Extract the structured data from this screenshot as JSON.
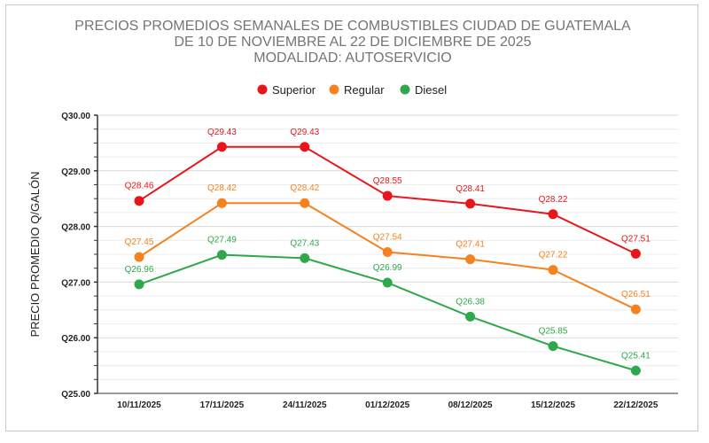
{
  "chart_data": {
    "type": "line",
    "title": [
      "PRECIOS PROMEDIOS SEMANALES DE COMBUSTIBLES CIUDAD DE GUATEMALA",
      "DE 10 DE NOVIEMBRE AL 22 DE DICIEMBRE DE 2025",
      "MODALIDAD: AUTOSERVICIO"
    ],
    "xlabel": "",
    "ylabel": "PRECIO PROMEDIO Q/GALÓN",
    "ylim": [
      25,
      30
    ],
    "yticks": [
      "Q25.00",
      "Q26.00",
      "Q27.00",
      "Q28.00",
      "Q29.00",
      "Q30.00"
    ],
    "categories": [
      "10/11/2025",
      "17/11/2025",
      "24/11/2025",
      "01/12/2025",
      "08/12/2025",
      "15/12/2025",
      "22/12/2025"
    ],
    "legend_position": "top",
    "grid": true,
    "series": [
      {
        "name": "Superior",
        "color": "#e8161b",
        "values": [
          28.46,
          29.43,
          29.43,
          28.55,
          28.41,
          28.22,
          27.51
        ],
        "labels": [
          "Q28.46",
          "Q29.43",
          "Q29.43",
          "Q28.55",
          "Q28.41",
          "Q28.22",
          "Q27.51"
        ]
      },
      {
        "name": "Regular",
        "color": "#f5821f",
        "values": [
          27.45,
          28.42,
          28.42,
          27.54,
          27.41,
          27.22,
          26.51
        ],
        "labels": [
          "Q27.45",
          "Q28.42",
          "Q28.42",
          "Q27.54",
          "Q27.41",
          "Q27.22",
          "Q26.51"
        ]
      },
      {
        "name": "Diesel",
        "color": "#2ea84a",
        "values": [
          26.96,
          27.49,
          27.43,
          26.99,
          26.38,
          25.85,
          25.41
        ],
        "labels": [
          "Q26.96",
          "Q27.49",
          "Q27.43",
          "Q26.99",
          "Q26.38",
          "Q25.85",
          "Q25.41"
        ]
      }
    ]
  }
}
